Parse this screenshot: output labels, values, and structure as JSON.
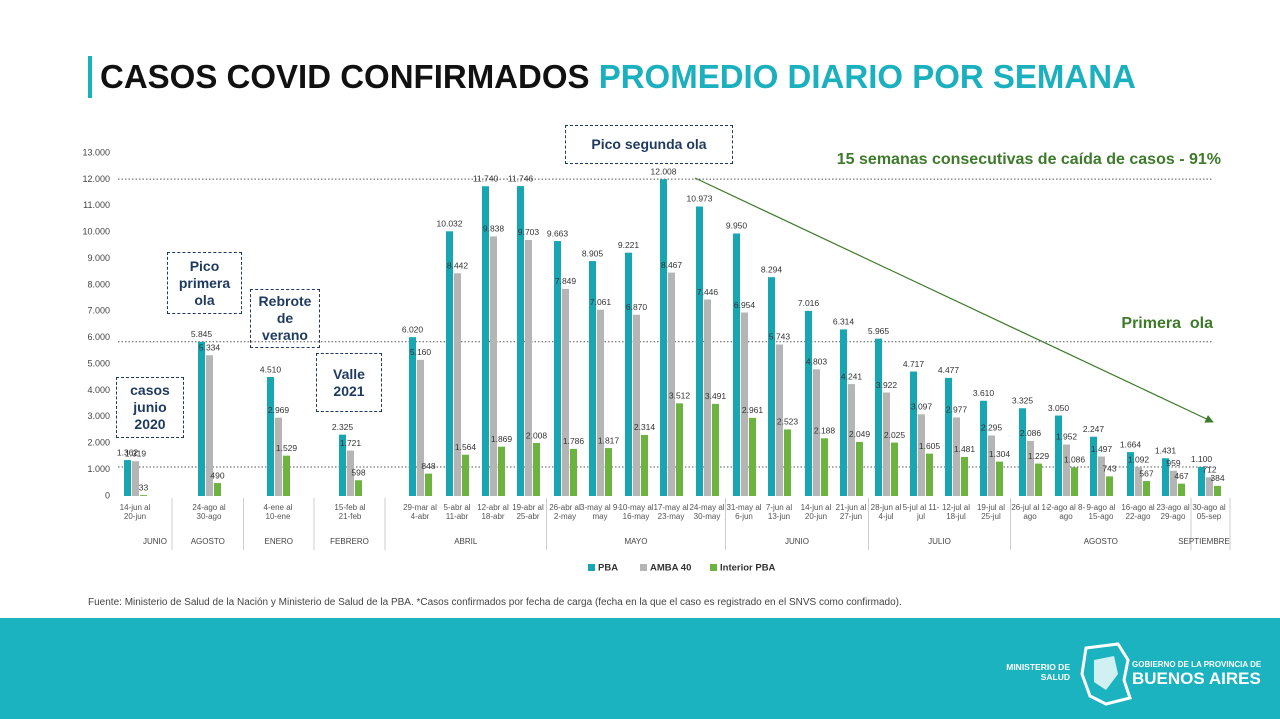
{
  "chart_data": {
    "type": "bar",
    "title": "CASOS COVID CONFIRMADOS",
    "subtitle": "PROMEDIO DIARIO POR SEMANA",
    "groups": [
      {
        "name": "JUNIO",
        "categories": [
          "14-jun al 20-jun"
        ]
      },
      {
        "name": "AGOSTO",
        "categories": [
          "24-ago al 30-ago"
        ]
      },
      {
        "name": "ENERO",
        "categories": [
          "4-ene al 10-ene"
        ]
      },
      {
        "name": "FEBRERO",
        "categories": [
          "15-feb al 21-feb"
        ]
      },
      {
        "name": "ABRIL",
        "categories": [
          "29-mar al 4-abr",
          "5-abr al 11-abr",
          "12-abr al 18-abr",
          "19-abr al 25-abr"
        ]
      },
      {
        "name": "MAYO",
        "categories": [
          "26-abr al 2-may",
          "3-may al 9-may",
          "10-may al 16-may",
          "17-may al 23-may",
          "24-may al 30-may"
        ]
      },
      {
        "name": "JUNIO",
        "categories": [
          "31-may al 6-jun",
          "7-jun al 13-jun",
          "14-jun al 20-jun",
          "21-jun al 27-jun"
        ]
      },
      {
        "name": "JULIO",
        "categories": [
          "28-jun al 4-jul",
          "5-jul al 11-jul",
          "12-jul al 18-jul",
          "19-jul al 25-jul"
        ]
      },
      {
        "name": "AGOSTO",
        "categories": [
          "26-jul al 1-ago",
          "2-ago al 8-ago",
          "9-ago al 15-ago",
          "16-ago al 22-ago",
          "23-ago al 29-ago"
        ]
      },
      {
        "name": "SEPTIEMBRE",
        "categories": [
          "30-ago al 05-sep"
        ]
      }
    ],
    "series": [
      {
        "name": "PBA",
        "color": "#19a6b3",
        "values": [
          1362,
          5845,
          4510,
          2325,
          6020,
          10032,
          11740,
          11746,
          9663,
          8905,
          9221,
          12008,
          10973,
          9950,
          8294,
          7016,
          6314,
          5965,
          4717,
          4477,
          3610,
          3325,
          3050,
          2247,
          1664,
          1431,
          1100
        ],
        "value_labels": [
          "1.362",
          "5.845",
          "4.510",
          "2.325",
          "6.020",
          "10.032",
          "11.740",
          "11.746",
          "9.663",
          "8.905",
          "9.221",
          "12.008",
          "10.973",
          "9.950",
          "8.294",
          "7.016",
          "6.314",
          "5.965",
          "4.717",
          "4.477",
          "3.610",
          "3.325",
          "3.050",
          "2.247",
          "1.664",
          "1.431",
          "1.100"
        ]
      },
      {
        "name": "AMBA 40",
        "color": "#b5b5b5",
        "values": [
          1319,
          5334,
          2969,
          1721,
          5160,
          8442,
          9838,
          9703,
          7849,
          7061,
          6870,
          8467,
          7446,
          6954,
          5743,
          4803,
          4241,
          3922,
          3097,
          2977,
          2295,
          2086,
          1952,
          1497,
          1092,
          959,
          712
        ],
        "value_labels": [
          "1.319",
          "5.334",
          "2.969",
          "1.721",
          "5.160",
          "8.442",
          "9.838",
          "9.703",
          "7.849",
          "7.061",
          "6.870",
          "8.467",
          "7.446",
          "6.954",
          "5.743",
          "4.803",
          "4.241",
          "3.922",
          "3.097",
          "2.977",
          "2.295",
          "2.086",
          "1.952",
          "1.497",
          "1.092",
          "959",
          "712"
        ]
      },
      {
        "name": "Interior PBA",
        "color": "#6cb33f",
        "values": [
          33,
          490,
          1529,
          598,
          848,
          1564,
          1869,
          2008,
          1786,
          1817,
          2314,
          3512,
          3491,
          2961,
          2523,
          2188,
          2049,
          2025,
          1605,
          1481,
          1304,
          1229,
          1086,
          743,
          567,
          467,
          384
        ],
        "value_labels": [
          "33",
          "490",
          "1.529",
          "598",
          "848",
          "1.564",
          "1.869",
          "2.008",
          "1.786",
          "1.817",
          "2.314",
          "3.512",
          "3.491",
          "2.961",
          "2.523",
          "2.188",
          "2.049",
          "2.025",
          "1.605",
          "1.481",
          "1.304",
          "1.229",
          "1.086",
          "743",
          "567",
          "467",
          "384"
        ]
      }
    ],
    "ylim": [
      0,
      13000
    ],
    "yticks": [
      0,
      {
        "value": 1000,
        "label": "1.000"
      },
      {
        "value": 2000,
        "label": "2.000"
      },
      {
        "value": 3000,
        "label": "3.000"
      },
      {
        "value": 4000,
        "label": "4.000"
      },
      {
        "value": 5000,
        "label": "5.000"
      },
      {
        "value": 6000,
        "label": "6.000"
      },
      {
        "value": 7000,
        "label": "7.000"
      },
      {
        "value": 8000,
        "label": "8.000"
      },
      {
        "value": 9000,
        "label": "9.000"
      },
      {
        "value": 10000,
        "label": "10.000"
      },
      {
        "value": 11000,
        "label": "11.000"
      },
      {
        "value": 12000,
        "label": "12.000"
      },
      {
        "value": 13000,
        "label": "13.000"
      }
    ],
    "grid": false,
    "reference_lines": [
      12008,
      5845,
      1100
    ],
    "annotations": {
      "peak_second": "Pico segunda ola",
      "trend": "15 semanas consecutivas de caída de casos - 91%",
      "first_wave": "Primera  ola",
      "peak_first": "Pico primera ola",
      "regrowth": "Rebrote de verano",
      "valley": "Valle 2021",
      "june_2020": "casos junio 2020"
    },
    "source": "Fuente: Ministerio de Salud de la Nación y Ministerio de Salud de la PBA. *Casos confirmados por fecha de carga (fecha en la que el caso es registrado en el SNVS como confirmado)."
  },
  "footer": {
    "ministry": "MINISTERIO DE SALUD",
    "government": "GOBIERNO DE LA PROVINCIA DE",
    "province": "BUENOS AIRES"
  }
}
